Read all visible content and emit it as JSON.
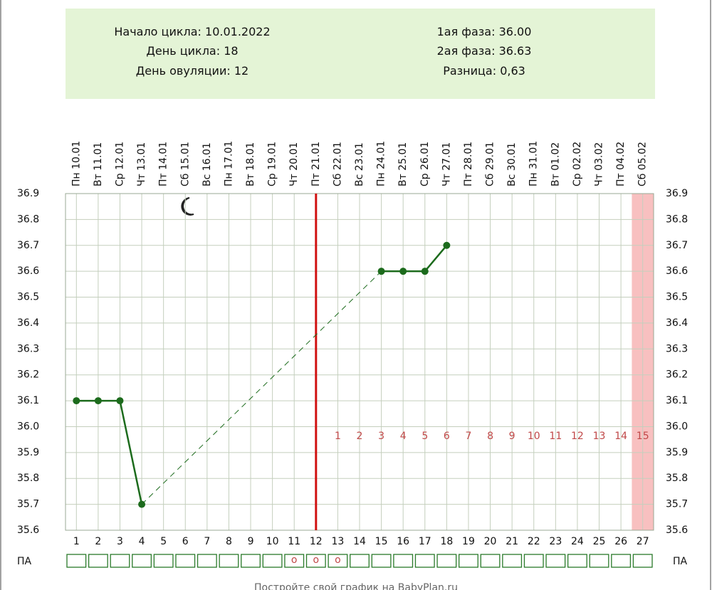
{
  "info": {
    "cycle_start": {
      "label": "Начало цикла:",
      "value": "10.01.2022"
    },
    "cycle_day": {
      "label": "День цикла:",
      "value": 18
    },
    "ovulation_day": {
      "label": "День овуляции:",
      "value": 12
    },
    "phase1": {
      "label": "1ая фаза:",
      "value": "36.00"
    },
    "phase2": {
      "label": "2ая фаза:",
      "value": "36.63"
    },
    "difference": {
      "label": "Разница:",
      "value": "0,63"
    }
  },
  "chart_data": {
    "type": "line",
    "x": [
      1,
      2,
      3,
      4,
      5,
      6,
      7,
      8,
      9,
      10,
      11,
      12,
      13,
      14,
      15,
      16,
      17,
      18,
      19,
      20,
      21,
      22,
      23,
      24,
      25,
      26,
      27
    ],
    "dates": [
      "Пн 10.01",
      "Вт 11.01",
      "Ср 12.01",
      "Чт 13.01",
      "Пт 14.01",
      "Сб 15.01",
      "Вс 16.01",
      "Пн 17.01",
      "Вт 18.01",
      "Ср 19.01",
      "Чт 20.01",
      "Пт 21.01",
      "Сб 22.01",
      "Вс 23.01",
      "Пн 24.01",
      "Вт 25.01",
      "Ср 26.01",
      "Чт 27.01",
      "Пт 28.01",
      "Сб 29.01",
      "Вс 30.01",
      "Пн 31.01",
      "Вт 01.02",
      "Ср 02.02",
      "Чт 03.02",
      "Пт 04.02",
      "Сб 05.02"
    ],
    "series": [
      {
        "color": "#1c6b1c",
        "values": [
          36.1,
          36.1,
          36.1,
          35.7,
          null,
          null,
          null,
          null,
          null,
          null,
          null,
          null,
          null,
          null,
          36.6,
          36.6,
          36.6,
          36.7,
          null,
          null,
          null,
          null,
          null,
          null,
          null,
          null,
          null
        ]
      }
    ],
    "ylim": [
      35.6,
      36.9
    ],
    "yticks": [
      35.6,
      35.7,
      35.8,
      35.9,
      {
        "value": 36.0,
        "label": "36.0"
      },
      36.1,
      36.2,
      36.3,
      36.4,
      36.5,
      36.6,
      36.7,
      36.8,
      36.9
    ],
    "grid": true,
    "ovulation_color": "#d01010",
    "phase_days": [
      1,
      2,
      3,
      4,
      5,
      6,
      7,
      8,
      9,
      10,
      11,
      12,
      13,
      14,
      15
    ],
    "phase_color": "#c04848",
    "highlight": {
      "day": 27,
      "color": "#f8c0c0"
    },
    "pa": {
      "label": "ПА",
      "marks": [
        {
          "day": 11,
          "text": "o"
        },
        {
          "day": 12,
          "text": "o"
        },
        {
          "day": 13,
          "text": "o"
        }
      ]
    }
  },
  "footer": "Постройте свой график на BabyPlan.ru"
}
